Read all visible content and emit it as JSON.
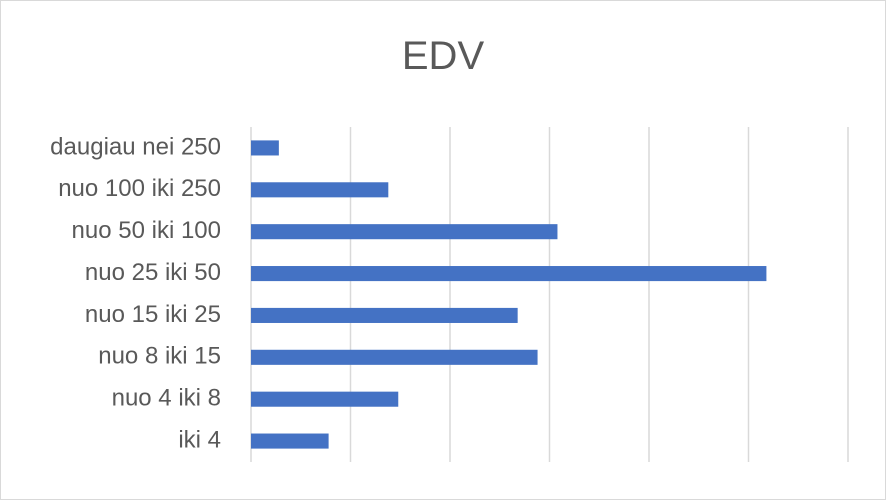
{
  "chart_data": {
    "type": "bar",
    "orientation": "horizontal",
    "title": "EDV",
    "categories": [
      "daugiau nei 250",
      "nuo 100 iki 250",
      "nuo 50 iki 100",
      "nuo 25 iki 50",
      "nuo 15 iki 25",
      "nuo 8 iki 15",
      "nuo 4 iki 8",
      "iki 4"
    ],
    "series": [
      {
        "values": [
          1.4,
          6.9,
          15.4,
          25.9,
          13.4,
          14.4,
          7.4,
          3.9
        ]
      }
    ],
    "xlim": [
      0,
      30
    ],
    "grid": true,
    "legend": "none",
    "colors": {
      "bar": "#4472c4",
      "grid": "#d9d9d9",
      "text": "#595959"
    }
  }
}
